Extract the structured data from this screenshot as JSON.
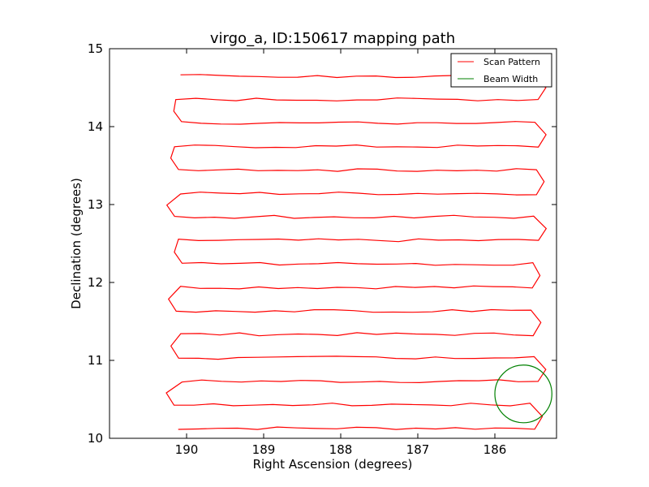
{
  "chart_data": {
    "type": "line",
    "title": "virgo_a, ID:150617 mapping path",
    "xlabel": "Right Ascension (degrees)",
    "ylabel": "Declination (degrees)",
    "xlim": [
      191.0,
      185.2
    ],
    "ylim": [
      10,
      15
    ],
    "xticks": [
      190,
      189,
      188,
      187,
      186
    ],
    "yticks": [
      10,
      11,
      12,
      13,
      14,
      15
    ],
    "series": [
      {
        "name": "Scan Pattern",
        "color": "#ff0000",
        "ra_min": 190.05,
        "ra_max": 185.55,
        "dec_start": 10.13,
        "dec_end": 14.65,
        "num_rows": 16,
        "notes": "Boustrophedon raster scan path alternating direction each row"
      },
      {
        "name": "Beam Width",
        "color": "#008000",
        "center_ra": 185.63,
        "center_dec": 10.57,
        "radius_deg": 0.37
      }
    ],
    "legend": {
      "position": "top-right",
      "entries": [
        "Scan Pattern",
        "Beam Width"
      ]
    }
  }
}
